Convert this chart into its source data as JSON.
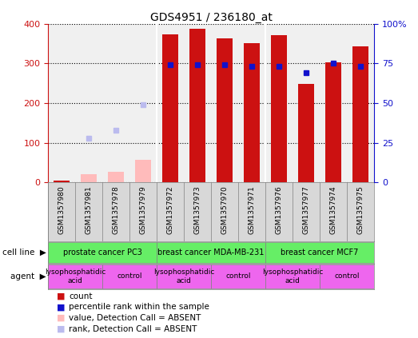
{
  "title": "GDS4951 / 236180_at",
  "samples": [
    "GSM1357980",
    "GSM1357981",
    "GSM1357978",
    "GSM1357979",
    "GSM1357972",
    "GSM1357973",
    "GSM1357970",
    "GSM1357971",
    "GSM1357976",
    "GSM1357977",
    "GSM1357974",
    "GSM1357975"
  ],
  "count_values": [
    5,
    0,
    0,
    0,
    373,
    387,
    362,
    350,
    372,
    249,
    302,
    342
  ],
  "rank_values": [
    null,
    null,
    null,
    null,
    74,
    74,
    74,
    73,
    73,
    69,
    75,
    73
  ],
  "absent_count": [
    null,
    20,
    27,
    57,
    null,
    null,
    null,
    null,
    null,
    null,
    null,
    null
  ],
  "absent_rank": [
    null,
    28,
    33,
    49,
    null,
    null,
    null,
    null,
    null,
    null,
    null,
    null
  ],
  "is_absent": [
    false,
    true,
    true,
    true,
    false,
    false,
    false,
    false,
    false,
    false,
    false,
    false
  ],
  "ylim_left": [
    0,
    400
  ],
  "ylim_right": [
    0,
    100
  ],
  "yticks_left": [
    0,
    100,
    200,
    300,
    400
  ],
  "yticks_right": [
    0,
    25,
    50,
    75,
    100
  ],
  "bar_color": "#cc1111",
  "rank_color": "#1111cc",
  "absent_bar_color": "#ffbbbb",
  "absent_rank_color": "#bbbbee",
  "cell_line_groups": [
    {
      "label": "prostate cancer PC3",
      "start": 0,
      "end": 3
    },
    {
      "label": "breast cancer MDA-MB-231",
      "start": 4,
      "end": 7
    },
    {
      "label": "breast cancer MCF7",
      "start": 8,
      "end": 11
    }
  ],
  "agent_groups": [
    {
      "label": "lysophosphatidic\nacid",
      "start": 0,
      "end": 1
    },
    {
      "label": "control",
      "start": 2,
      "end": 3
    },
    {
      "label": "lysophosphatidic\nacid",
      "start": 4,
      "end": 5
    },
    {
      "label": "control",
      "start": 6,
      "end": 7
    },
    {
      "label": "lysophosphatidic\nacid",
      "start": 8,
      "end": 9
    },
    {
      "label": "control",
      "start": 10,
      "end": 11
    }
  ],
  "cell_line_color": "#66ee66",
  "agent_lpa_color": "#ee66ee",
  "agent_ctrl_color": "#ee66ee",
  "legend_items": [
    {
      "color": "#cc1111",
      "label": "count"
    },
    {
      "color": "#1111cc",
      "label": "percentile rank within the sample"
    },
    {
      "color": "#ffbbbb",
      "label": "value, Detection Call = ABSENT"
    },
    {
      "color": "#bbbbee",
      "label": "rank, Detection Call = ABSENT"
    }
  ]
}
